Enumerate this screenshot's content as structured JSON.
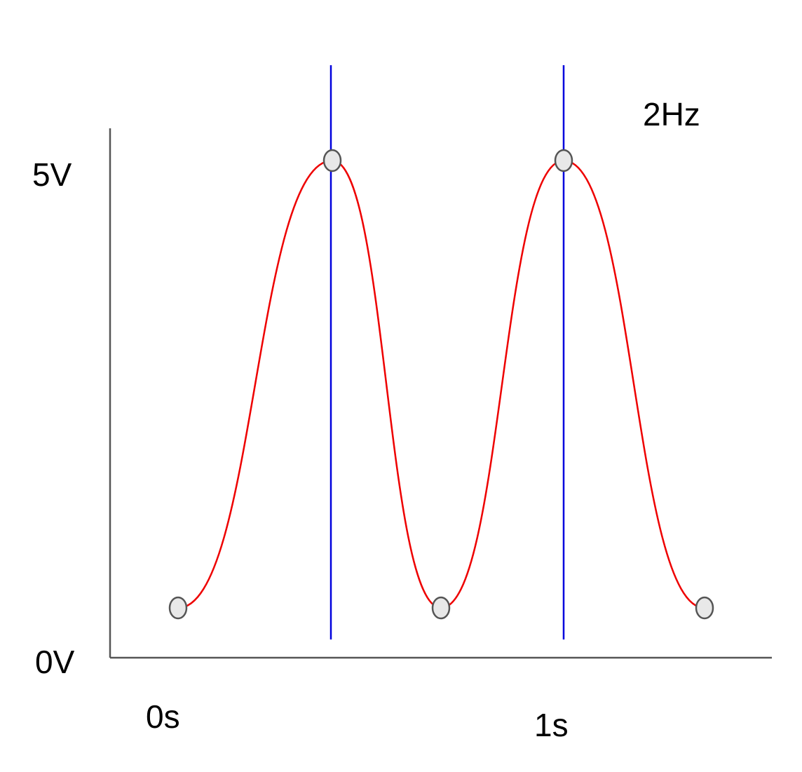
{
  "axis": {
    "y_labels": [
      "5V",
      "0V"
    ],
    "x_labels": [
      "0s",
      "1s"
    ]
  },
  "annotation": "2Hz"
}
